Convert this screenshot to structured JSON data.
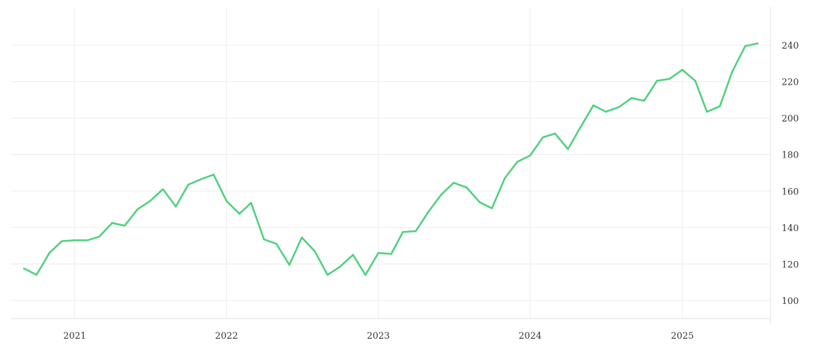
{
  "chart_data": {
    "type": "line",
    "title": "",
    "xlabel": "",
    "ylabel": "",
    "x_tick_labels": [
      "2021",
      "2022",
      "2023",
      "2024",
      "2025"
    ],
    "y_tick_labels": [
      "100",
      "120",
      "140",
      "160",
      "180",
      "200",
      "220",
      "240"
    ],
    "y_ticks": [
      100,
      120,
      140,
      160,
      180,
      200,
      220,
      240
    ],
    "ylim": [
      87,
      261
    ],
    "xlim": [
      "2020-08-01",
      "2025-08-01"
    ],
    "y_axis_position": "right",
    "grid": true,
    "legend": "none",
    "colors": {
      "line": "#4fd07c",
      "grid": "#ececec",
      "text": "#333333"
    },
    "series": [
      {
        "x": [
          "2020-09-01",
          "2020-10-01",
          "2020-11-01",
          "2020-12-01",
          "2021-01-01",
          "2021-02-01",
          "2021-03-01",
          "2021-04-01",
          "2021-05-01",
          "2021-06-01",
          "2021-07-01",
          "2021-08-01",
          "2021-09-01",
          "2021-10-01",
          "2021-11-01",
          "2021-12-01",
          "2022-01-01",
          "2022-02-01",
          "2022-03-01",
          "2022-04-01",
          "2022-05-01",
          "2022-06-01",
          "2022-07-01",
          "2022-08-01",
          "2022-09-01",
          "2022-10-01",
          "2022-11-01",
          "2022-12-01",
          "2023-01-01",
          "2023-02-01",
          "2023-03-01",
          "2023-04-01",
          "2023-05-01",
          "2023-06-01",
          "2023-07-01",
          "2023-08-01",
          "2023-09-01",
          "2023-10-01",
          "2023-11-01",
          "2023-12-01",
          "2024-01-01",
          "2024-02-01",
          "2024-03-01",
          "2024-04-01",
          "2024-05-01",
          "2024-06-01",
          "2024-07-01",
          "2024-08-01",
          "2024-09-01",
          "2024-10-01",
          "2024-11-01",
          "2024-12-01",
          "2025-01-01",
          "2025-02-01",
          "2025-03-01",
          "2025-04-01",
          "2025-05-01",
          "2025-06-01",
          "2025-07-01"
        ],
        "values": [
          117.5,
          114,
          126,
          132.5,
          133,
          133,
          135,
          142.5,
          141,
          150,
          154.5,
          161,
          151.5,
          163.5,
          166.5,
          169,
          154.5,
          147.5,
          153.5,
          133.5,
          131,
          119.5,
          134.5,
          127,
          114,
          118.5,
          125,
          114,
          126,
          125.5,
          137.5,
          138,
          148.5,
          158,
          164.5,
          162,
          154,
          150.5,
          167,
          176,
          179.5,
          189.5,
          191.5,
          183,
          195,
          207,
          203.5,
          206,
          211,
          209.5,
          220.5,
          221.5,
          226.5,
          220.5,
          203.5,
          206.5,
          225.5,
          239.5,
          241
        ]
      }
    ]
  }
}
